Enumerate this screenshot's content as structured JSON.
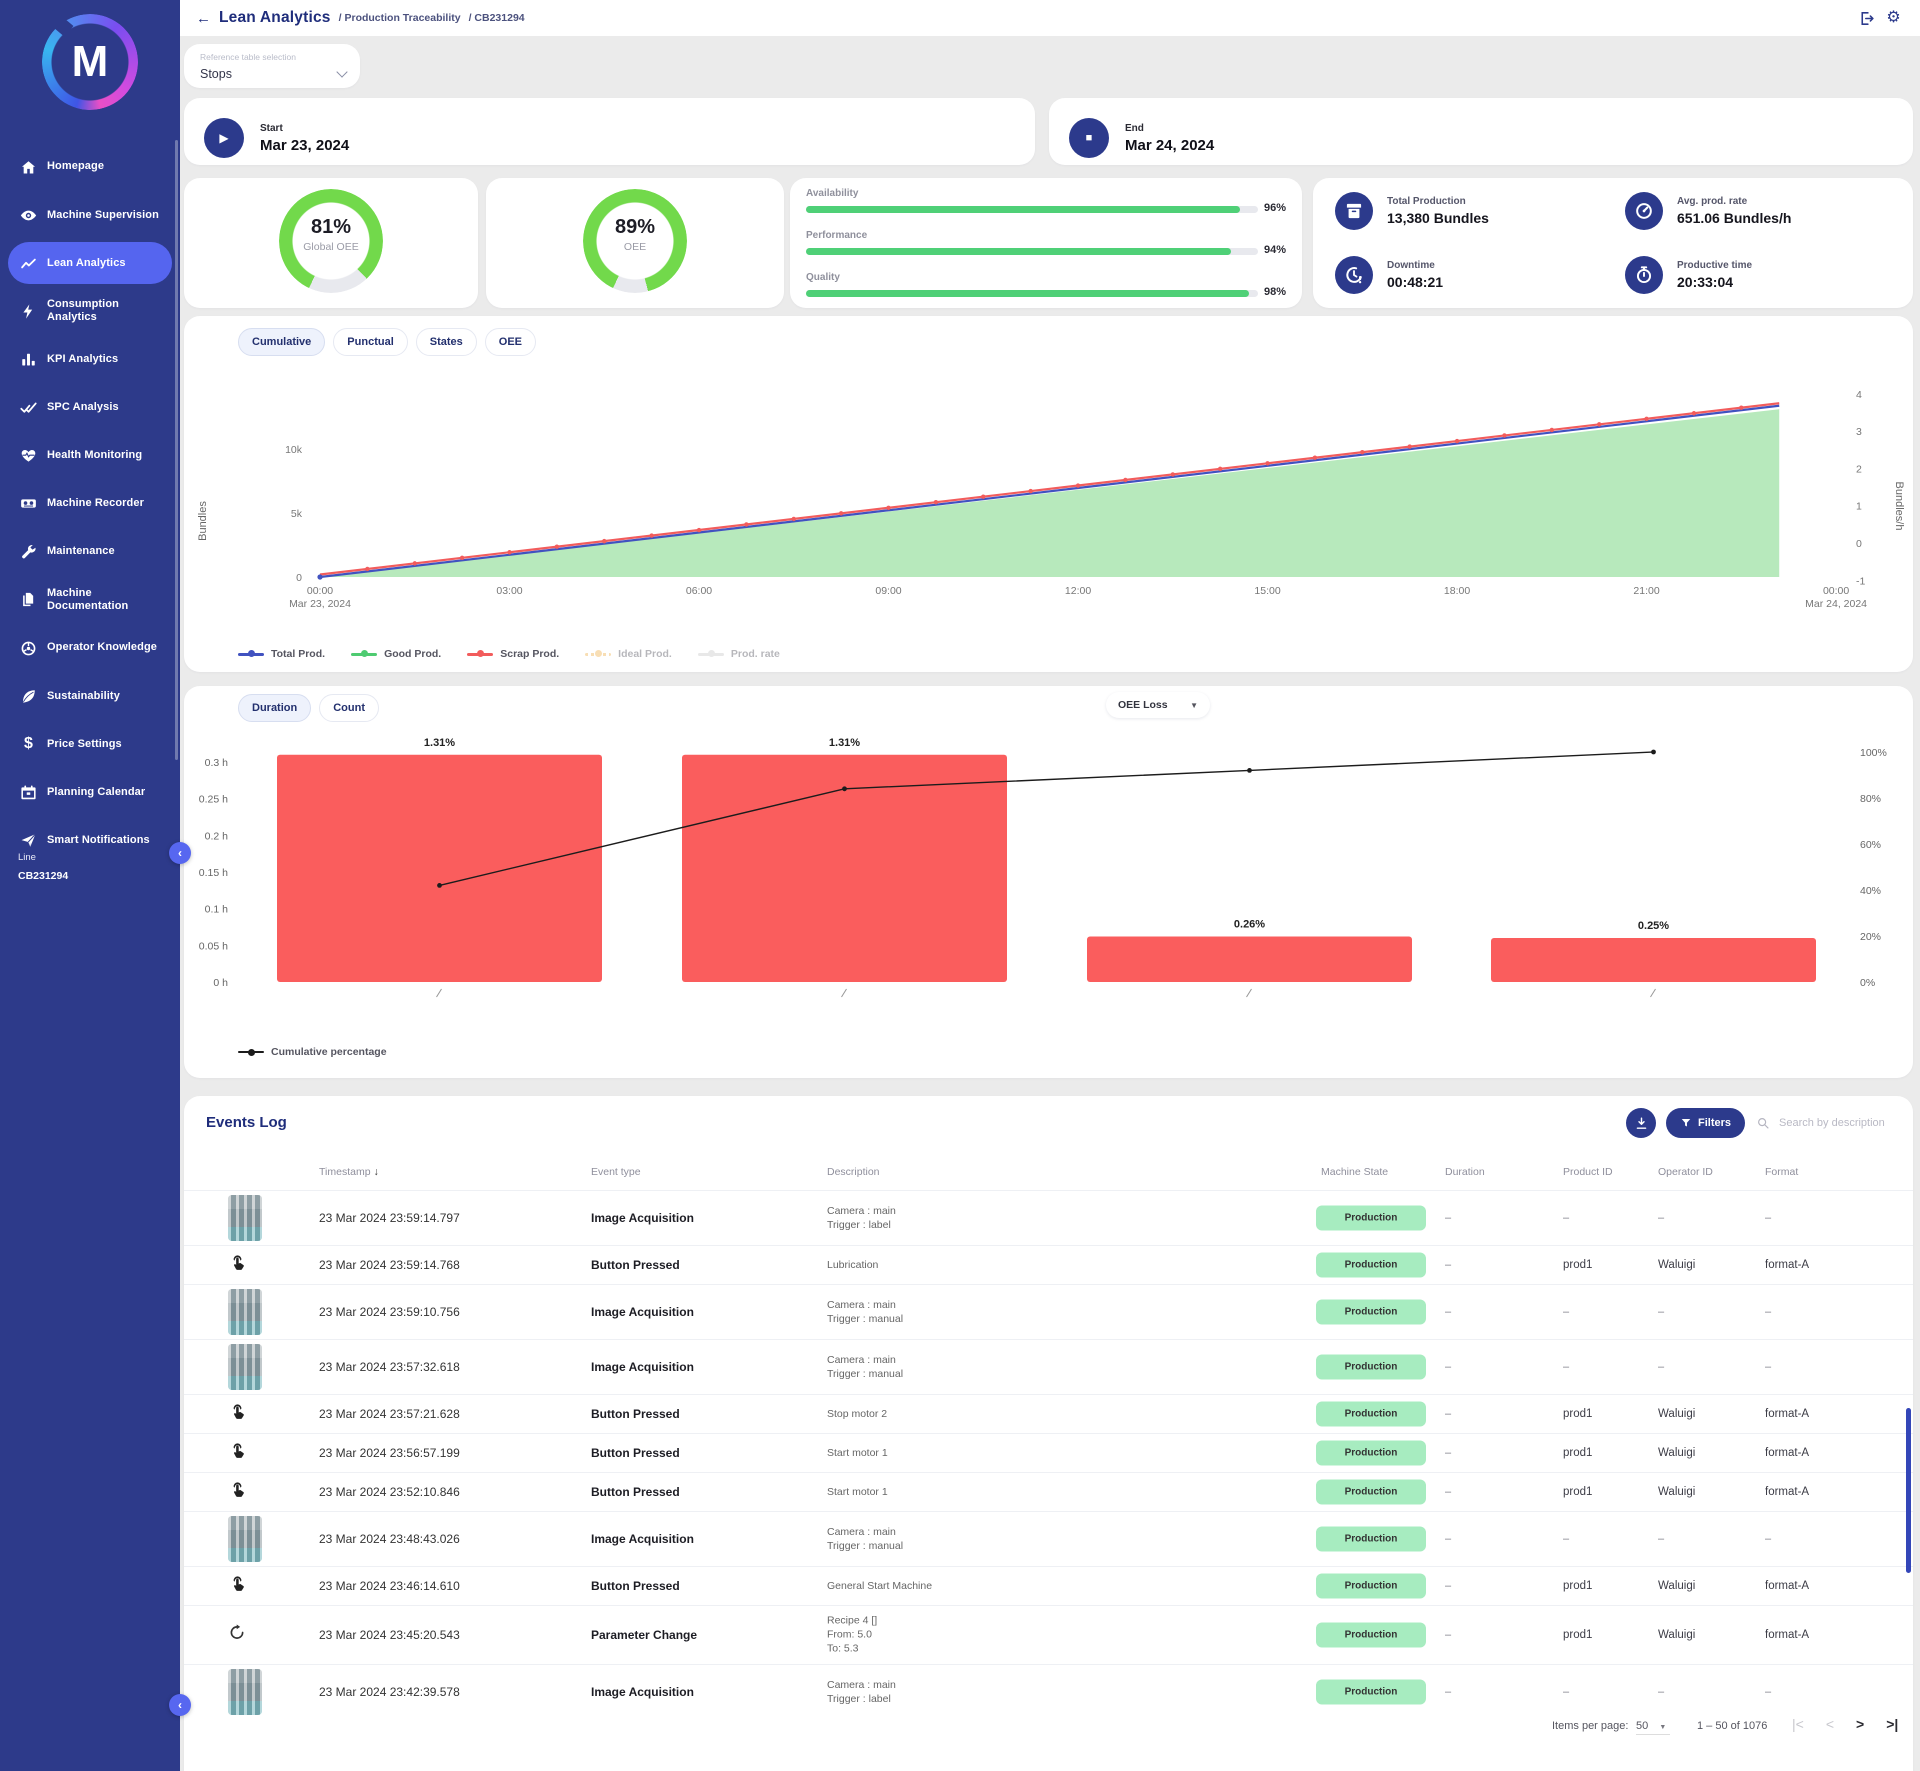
{
  "colors": {
    "sidebar": "#2d3a8a",
    "active_item": "#5565ef",
    "primary": "#2c3a8c",
    "gauge_green": "#72d94b",
    "bar_green": "#4fd077",
    "red": "#fa5d5d",
    "blue_line": "#4152c0",
    "good_green": "#4ecb71",
    "ideal_orange": "#f0b24e",
    "rate_gray": "#c9c9c9",
    "badge_bg": "#a7ecc0",
    "badge_text": "#333333",
    "page_bg": "#ebebeb"
  },
  "header": {
    "back": "←",
    "title": "Lean Analytics",
    "breadcrumbs": [
      "/ Production Traceability",
      "/ CB231294"
    ]
  },
  "sidebar": {
    "logo": "M",
    "items": [
      {
        "label": "Homepage",
        "icon": "home"
      },
      {
        "label": "Machine Supervision",
        "icon": "eye"
      },
      {
        "label": "Lean Analytics",
        "icon": "chart-line",
        "active": true
      },
      {
        "label": "Consumption Analytics",
        "icon": "bolt"
      },
      {
        "label": "KPI Analytics",
        "icon": "bar-chart"
      },
      {
        "label": "SPC Analysis",
        "icon": "double-check"
      },
      {
        "label": "Health Monitoring",
        "icon": "heart"
      },
      {
        "label": "Machine Recorder",
        "icon": "recorder"
      },
      {
        "label": "Maintenance",
        "icon": "wrench"
      },
      {
        "label": "Machine Documentation",
        "icon": "documents"
      },
      {
        "label": "Operator Knowledge",
        "icon": "knowledge"
      },
      {
        "label": "Sustainability",
        "icon": "leaf"
      },
      {
        "label": "Price Settings",
        "icon": "dollar"
      },
      {
        "label": "Planning Calendar",
        "icon": "calendar"
      },
      {
        "label": "Smart Notifications",
        "icon": "send"
      }
    ],
    "collapse": "‹",
    "line_label": "Line",
    "line_value": "CB231294"
  },
  "controls": {
    "reference_label": "Reference table selection",
    "reference_value": "Stops",
    "start_label": "Start",
    "start_value": "Mar 23, 2024",
    "start_icon": "▶",
    "end_label": "End",
    "end_value": "Mar 24, 2024",
    "end_icon": "■"
  },
  "kpi": {
    "gauges": [
      {
        "value": "81%",
        "pct": 81,
        "label": "Global OEE"
      },
      {
        "value": "89%",
        "pct": 89,
        "label": "OEE"
      }
    ],
    "bars": [
      {
        "label": "Availability",
        "pct": 96,
        "display": "96%"
      },
      {
        "label": "Performance",
        "pct": 94,
        "display": "94%"
      },
      {
        "label": "Quality",
        "pct": 98,
        "display": "98%"
      }
    ],
    "stats": [
      {
        "icon": "box",
        "label": "Total Production",
        "value": "13,380 Bundles"
      },
      {
        "icon": "rate",
        "label": "Avg. prod. rate",
        "value": "651.06 Bundles/h"
      },
      {
        "icon": "downtime",
        "label": "Downtime",
        "value": "00:48:21"
      },
      {
        "icon": "stopwatch",
        "label": "Productive time",
        "value": "20:33:04"
      }
    ]
  },
  "production_chart": {
    "tabs": [
      {
        "label": "Cumulative",
        "active": true
      },
      {
        "label": "Punctual"
      },
      {
        "label": "States"
      },
      {
        "label": "OEE"
      }
    ]
  },
  "pareto": {
    "tabs": [
      {
        "label": "Duration",
        "active": true
      },
      {
        "label": "Count"
      }
    ],
    "dropdown_value": "OEE Loss"
  },
  "chart_data": [
    {
      "id": "production-cumulative",
      "type": "area-line",
      "x_axis": {
        "hours": [
          0,
          3,
          6,
          9,
          12,
          15,
          18,
          21,
          24
        ],
        "ticks": [
          {
            "label": "00:00",
            "sub": "Mar 23, 2024"
          },
          {
            "label": "03:00"
          },
          {
            "label": "06:00"
          },
          {
            "label": "09:00"
          },
          {
            "label": "12:00"
          },
          {
            "label": "15:00"
          },
          {
            "label": "18:00"
          },
          {
            "label": "21:00"
          },
          {
            "label": "00:00",
            "sub": "Mar 24, 2024"
          }
        ]
      },
      "y_left": {
        "label": "Bundles",
        "ticks": [
          "0",
          "5k",
          "10k"
        ],
        "values": [
          0,
          5000,
          10000
        ]
      },
      "y_right": {
        "label": "Bundles/h",
        "ticks": [
          -1,
          0,
          1,
          2,
          3,
          4
        ]
      },
      "series": [
        {
          "name": "Total Prod.",
          "color": "#4152c0",
          "points": [
            [
              0,
              0
            ],
            [
              3,
              1738
            ],
            [
              6,
              3476
            ],
            [
              9,
              5213
            ],
            [
              12,
              6951
            ],
            [
              15,
              8689
            ],
            [
              18,
              10427
            ],
            [
              21,
              12164
            ],
            [
              23.1,
              13380
            ]
          ]
        },
        {
          "name": "Good Prod.",
          "color": "#4ecb71",
          "area": true,
          "points": [
            [
              0,
              0
            ],
            [
              3,
              1703
            ],
            [
              6,
              3406
            ],
            [
              9,
              5110
            ],
            [
              12,
              6813
            ],
            [
              15,
              8516
            ],
            [
              18,
              10219
            ],
            [
              21,
              11923
            ],
            [
              23.1,
              13112
            ]
          ]
        },
        {
          "name": "Scrap Prod.",
          "color": "#f25c5c",
          "points": [
            [
              0,
              0
            ],
            [
              3,
              1738
            ],
            [
              6,
              3476
            ],
            [
              9,
              5213
            ],
            [
              12,
              6951
            ],
            [
              15,
              8689
            ],
            [
              18,
              10427
            ],
            [
              21,
              12164
            ],
            [
              23.1,
              13380
            ]
          ]
        },
        {
          "name": "Ideal Prod.",
          "color": "#f0b24e",
          "disabled": true,
          "style": "dotted"
        },
        {
          "name": "Prod. rate",
          "color": "#c9c9c9",
          "disabled": true
        }
      ]
    },
    {
      "id": "oee-loss-pareto",
      "type": "pareto",
      "unit": "h",
      "categories": [
        "",
        "",
        "",
        ""
      ],
      "bar_values_hours": [
        0.31,
        0.31,
        0.062,
        0.06
      ],
      "bar_labels": [
        "1.31%",
        "1.31%",
        "0.26%",
        "0.25%"
      ],
      "cumulative_pct": [
        42,
        84,
        92,
        100
      ],
      "y_left_ticks": [
        "0 h",
        "0.05 h",
        "0.1 h",
        "0.15 h",
        "0.2 h",
        "0.25 h",
        "0.3 h"
      ],
      "y_right_ticks": [
        "0%",
        "20%",
        "40%",
        "60%",
        "80%",
        "100%"
      ],
      "bar_color": "#fa5d5d",
      "line_color": "#1c1c1c",
      "legend": "Cumulative percentage"
    }
  ],
  "events": {
    "title": "Events Log",
    "filters_label": "Filters",
    "search_placeholder": "Search by description",
    "sort_icon": "↓",
    "columns": [
      "Timestamp",
      "Event type",
      "Description",
      "Machine State",
      "Duration",
      "Product ID",
      "Operator ID",
      "Format"
    ],
    "badge": {
      "bg": "#a7ecc0",
      "text": "#333333"
    },
    "rows": [
      {
        "icon": "image",
        "time": "23 Mar 2024 23:59:14.797",
        "type": "Image Acquisition",
        "desc": [
          "Camera : main",
          "Trigger : label"
        ],
        "state": "Production",
        "duration": "–",
        "product": "–",
        "operator": "–",
        "format": "–"
      },
      {
        "icon": "touch",
        "time": "23 Mar 2024 23:59:14.768",
        "type": "Button Pressed",
        "desc": [
          "Lubrication"
        ],
        "state": "Production",
        "duration": "–",
        "product": "prod1",
        "operator": "Waluigi",
        "format": "format-A"
      },
      {
        "icon": "image",
        "time": "23 Mar 2024 23:59:10.756",
        "type": "Image Acquisition",
        "desc": [
          "Camera : main",
          "Trigger : manual"
        ],
        "state": "Production",
        "duration": "–",
        "product": "–",
        "operator": "–",
        "format": "–"
      },
      {
        "icon": "image",
        "time": "23 Mar 2024 23:57:32.618",
        "type": "Image Acquisition",
        "desc": [
          "Camera : main",
          "Trigger : manual"
        ],
        "state": "Production",
        "duration": "–",
        "product": "–",
        "operator": "–",
        "format": "–"
      },
      {
        "icon": "touch",
        "time": "23 Mar 2024 23:57:21.628",
        "type": "Button Pressed",
        "desc": [
          "Stop motor 2"
        ],
        "state": "Production",
        "duration": "–",
        "product": "prod1",
        "operator": "Waluigi",
        "format": "format-A"
      },
      {
        "icon": "touch",
        "time": "23 Mar 2024 23:56:57.199",
        "type": "Button Pressed",
        "desc": [
          "Start motor 1"
        ],
        "state": "Production",
        "duration": "–",
        "product": "prod1",
        "operator": "Waluigi",
        "format": "format-A"
      },
      {
        "icon": "touch",
        "time": "23 Mar 2024 23:52:10.846",
        "type": "Button Pressed",
        "desc": [
          "Start motor 1"
        ],
        "state": "Production",
        "duration": "–",
        "product": "prod1",
        "operator": "Waluigi",
        "format": "format-A"
      },
      {
        "icon": "image",
        "time": "23 Mar 2024 23:48:43.026",
        "type": "Image Acquisition",
        "desc": [
          "Camera : main",
          "Trigger : manual"
        ],
        "state": "Production",
        "duration": "–",
        "product": "–",
        "operator": "–",
        "format": "–"
      },
      {
        "icon": "touch",
        "time": "23 Mar 2024 23:46:14.610",
        "type": "Button Pressed",
        "desc": [
          "General Start Machine"
        ],
        "state": "Production",
        "duration": "–",
        "product": "prod1",
        "operator": "Waluigi",
        "format": "format-A"
      },
      {
        "icon": "param",
        "time": "23 Mar 2024 23:45:20.543",
        "type": "Parameter Change",
        "desc": [
          "Recipe 4 []",
          "From: 5.0",
          "To: 5.3"
        ],
        "state": "Production",
        "duration": "–",
        "product": "prod1",
        "operator": "Waluigi",
        "format": "format-A"
      },
      {
        "icon": "image",
        "time": "23 Mar 2024 23:42:39.578",
        "type": "Image Acquisition",
        "desc": [
          "Camera : main",
          "Trigger : label"
        ],
        "state": "Production",
        "duration": "–",
        "product": "–",
        "operator": "–",
        "format": "–"
      }
    ],
    "pagination": {
      "items_per_page_label": "Items per page:",
      "items_per_page": "50",
      "range": "1 – 50 of 1076"
    }
  }
}
